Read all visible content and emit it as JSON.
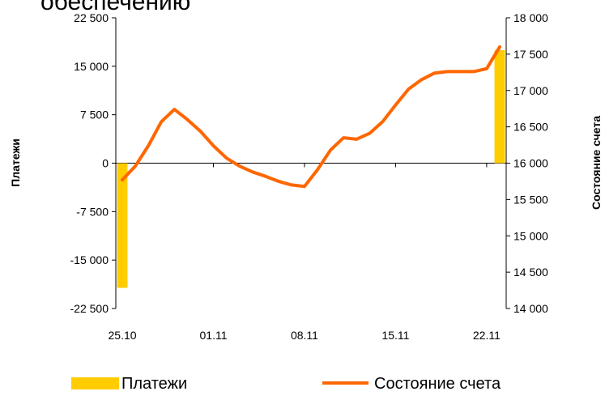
{
  "chart_data": {
    "type": "bar-line",
    "title": "обеспечению",
    "ylabel": "Платежи",
    "y2label": "Состояние счета",
    "categories": [
      "25.10",
      null,
      null,
      null,
      null,
      null,
      null,
      "01.11",
      null,
      null,
      null,
      null,
      null,
      null,
      "08.11",
      null,
      null,
      null,
      null,
      null,
      null,
      "15.11",
      null,
      null,
      null,
      null,
      null,
      null,
      "22.11",
      null
    ],
    "series": [
      {
        "name": "Платежи",
        "type": "bar",
        "color": "#ffcc00",
        "values": [
          -19300,
          null,
          null,
          null,
          null,
          null,
          null,
          null,
          null,
          null,
          null,
          null,
          null,
          null,
          null,
          null,
          null,
          null,
          null,
          null,
          null,
          null,
          null,
          null,
          null,
          null,
          null,
          null,
          null,
          17500
        ]
      },
      {
        "name": "Состояние счета",
        "type": "line",
        "color": "#ff6600",
        "axis": "y2",
        "values": [
          15770,
          15960,
          16240,
          16570,
          16740,
          16600,
          16440,
          16240,
          16070,
          15960,
          15880,
          15820,
          15750,
          15700,
          15680,
          15910,
          16180,
          16350,
          16330,
          16410,
          16570,
          16800,
          17020,
          17150,
          17240,
          17260,
          17260,
          17260,
          17300,
          17600
        ]
      }
    ],
    "ylim": [
      -22500,
      22500
    ],
    "yticks": [
      {
        "value": -22500,
        "label": "-22 500"
      },
      {
        "value": -15000,
        "label": "-15 000"
      },
      {
        "value": -7500,
        "label": "-7 500"
      },
      0,
      {
        "value": 7500,
        "label": "7 500"
      },
      {
        "value": 15000,
        "label": "15 000"
      },
      {
        "value": 22500,
        "label": "22 500"
      }
    ],
    "y2lim": [
      14000,
      18000
    ],
    "y2ticks": [
      {
        "value": 14000,
        "label": "14 000"
      },
      {
        "value": 14500,
        "label": "14 500"
      },
      {
        "value": 15000,
        "label": "15 000"
      },
      {
        "value": 15500,
        "label": "15 500"
      },
      {
        "value": 16000,
        "label": "16 000"
      },
      {
        "value": 16500,
        "label": "16 500"
      },
      {
        "value": 17000,
        "label": "17 000"
      },
      {
        "value": 17500,
        "label": "17 500"
      },
      {
        "value": 18000,
        "label": "18 000"
      }
    ],
    "grid": false
  }
}
